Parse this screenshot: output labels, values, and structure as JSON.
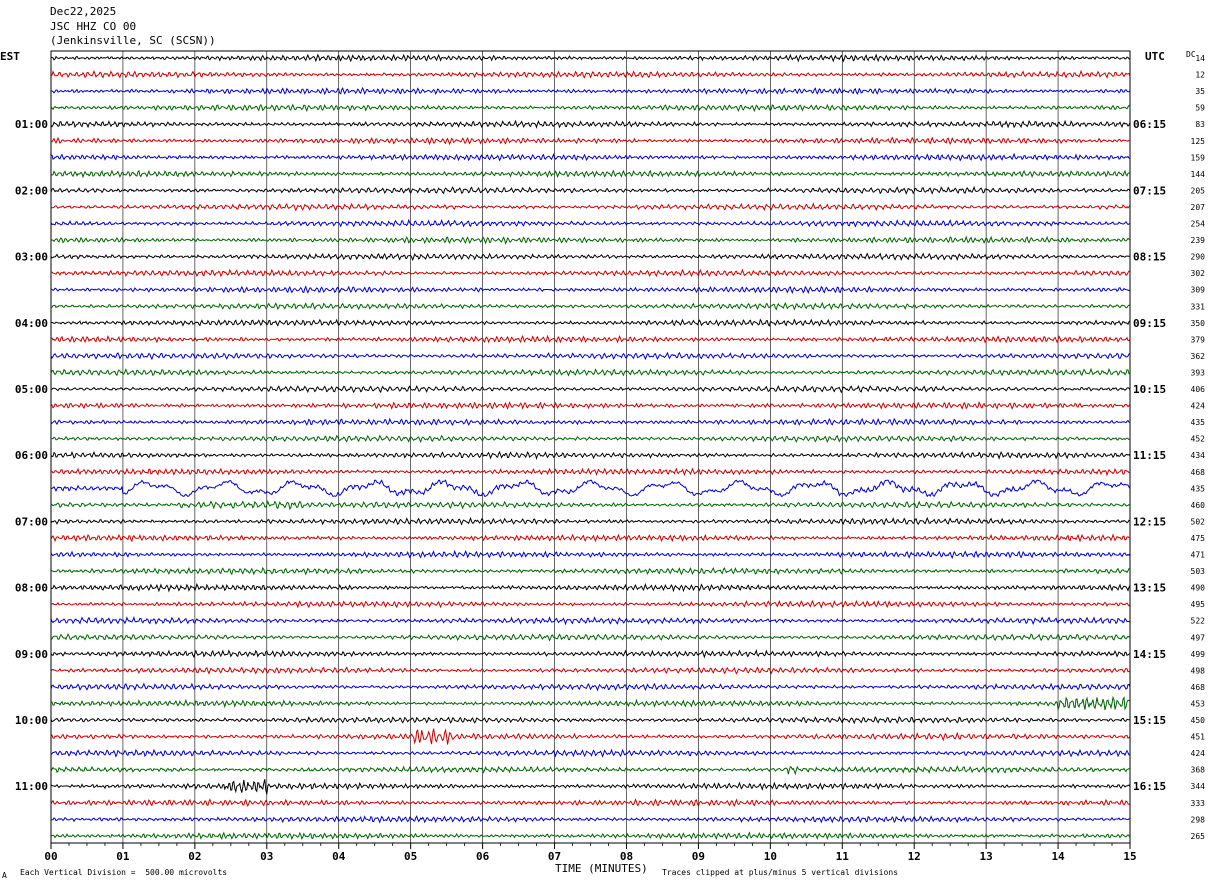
{
  "header": {
    "date": "Dec22,2025",
    "station": "JSC HHZ CO 00",
    "location": "(Jenkinsville, SC (SCSN))"
  },
  "labels": {
    "left_tz": "EST",
    "right_tz": "UTC",
    "dc_header": "DC"
  },
  "footer": {
    "scale_note": "Each Vertical Division =  500.00 microvolts",
    "xlabel": "TIME (MINUTES)",
    "clip_note": "Traces clipped at plus/minus 5 vertical divisions",
    "corner_mark": "A"
  },
  "chart_data": {
    "type": "line",
    "title": "JSC HHZ CO 00",
    "xlabel": "TIME (MINUTES)",
    "xlim": [
      0,
      15
    ],
    "x_ticks": [
      "00",
      "01",
      "02",
      "03",
      "04",
      "05",
      "06",
      "07",
      "08",
      "09",
      "10",
      "11",
      "12",
      "13",
      "14",
      "15"
    ],
    "grid": "vertical lines at each minute",
    "trace_colors": [
      "#000000",
      "#cc0000",
      "#0000cc",
      "#006400"
    ],
    "left_time_labels": [
      "01:00",
      "02:00",
      "03:00",
      "04:00",
      "05:00",
      "06:00",
      "07:00",
      "08:00",
      "09:00",
      "10:00",
      "11:00"
    ],
    "right_time_labels": [
      "06:15",
      "07:15",
      "08:15",
      "09:15",
      "10:15",
      "11:15",
      "12:15",
      "13:15",
      "14:15",
      "15:15",
      "16:15"
    ],
    "trace_dc_offsets": [
      "14",
      "12",
      "35",
      "59",
      "83",
      "125",
      "159",
      "144",
      "205",
      "207",
      "254",
      "239",
      "290",
      "302",
      "309",
      "331",
      "350",
      "379",
      "362",
      "393",
      "406",
      "424",
      "435",
      "452",
      "434",
      "468",
      "435",
      "460",
      "502",
      "475",
      "471",
      "503",
      "490",
      "495",
      "522",
      "497",
      "499",
      "498",
      "468",
      "453",
      "450",
      "451",
      "424",
      "368",
      "344",
      "333",
      "298",
      "265"
    ],
    "notable_events": [
      {
        "trace": 26,
        "x_start": 1.0,
        "x_end": 15.0,
        "note": "large low-frequency undulations"
      },
      {
        "trace": 27,
        "x_start": 1.8,
        "x_end": 3.5,
        "note": "elevated amplitude"
      },
      {
        "trace": 41,
        "x_start": 5.0,
        "x_end": 5.6,
        "note": "burst"
      },
      {
        "trace": 39,
        "x_start": 14.0,
        "x_end": 15.0,
        "note": "burst"
      },
      {
        "trace": 43,
        "x_start": 10.2,
        "x_end": 10.4,
        "note": "burst"
      },
      {
        "trace": 44,
        "x_start": 2.4,
        "x_end": 3.0,
        "note": "burst"
      }
    ]
  }
}
